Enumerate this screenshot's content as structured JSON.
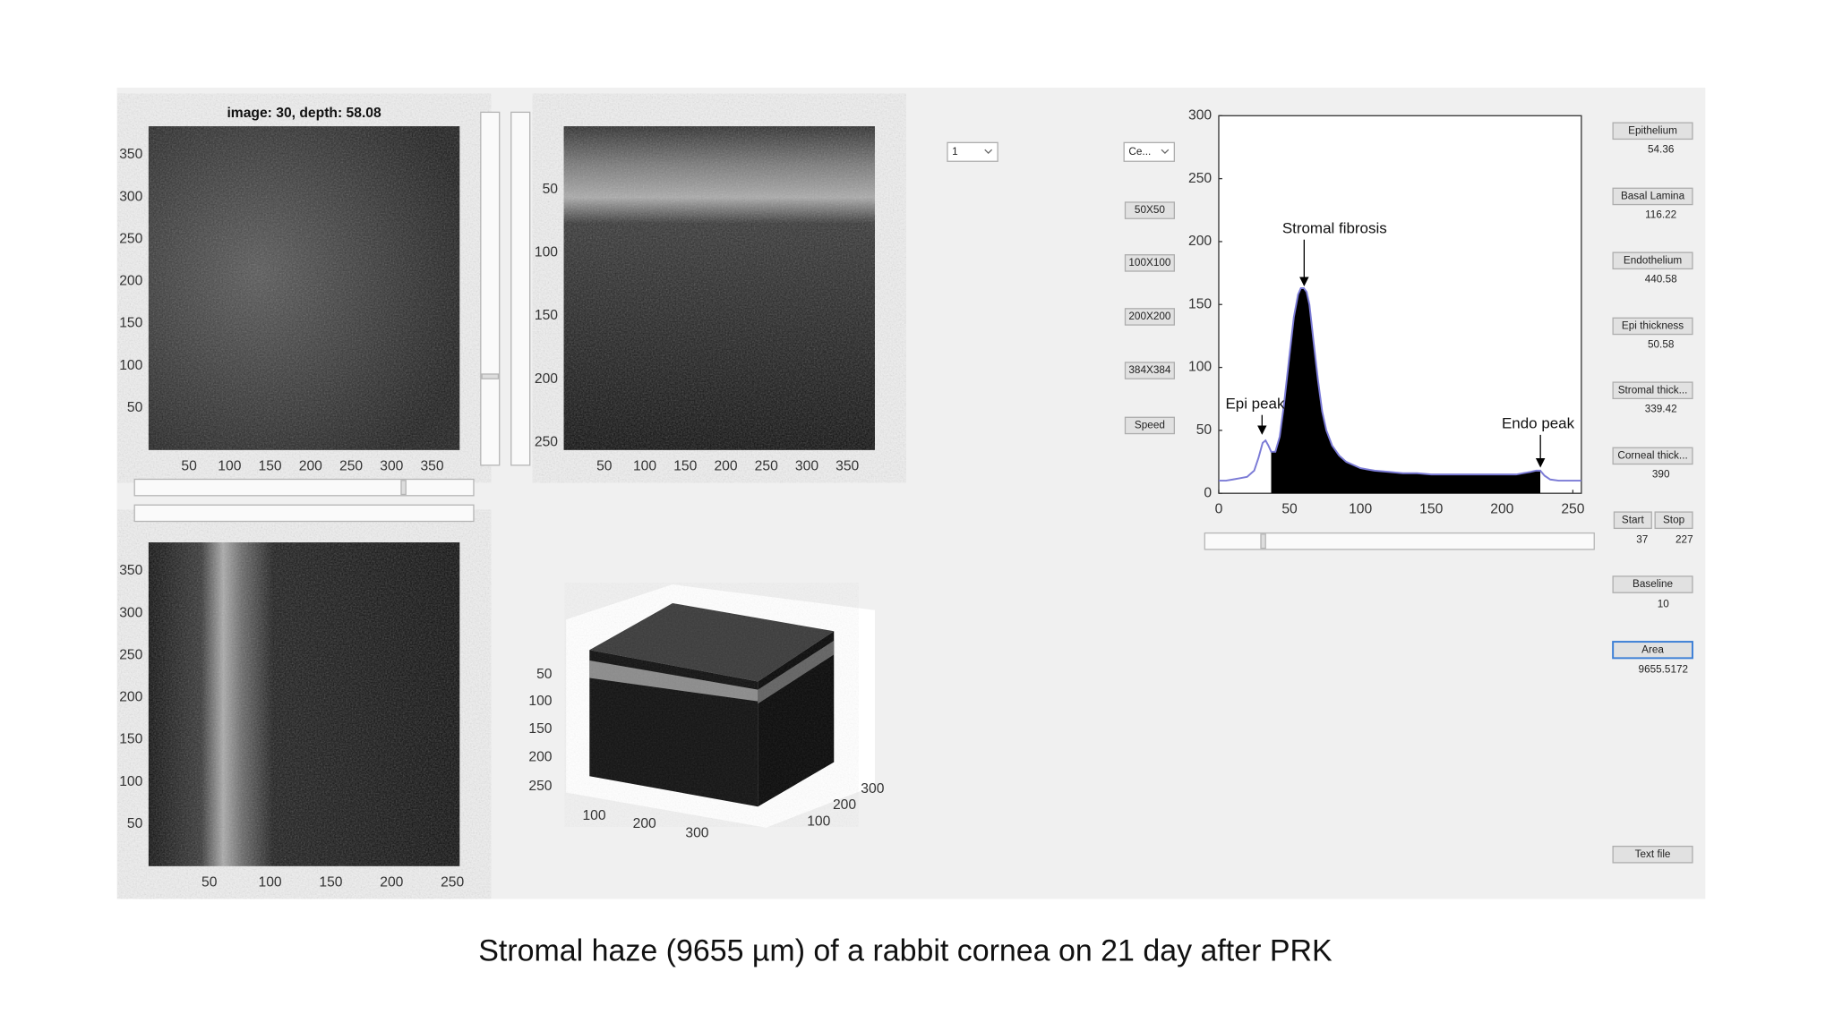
{
  "images": [
    {
      "title": "image: 30, depth: 58.08",
      "xlim": [
        0,
        384
      ],
      "ylim": [
        0,
        384
      ],
      "xticks": [
        50,
        100,
        150,
        200,
        250,
        300,
        350
      ],
      "yticks": [
        50,
        100,
        150,
        200,
        250,
        300,
        350
      ]
    },
    {
      "xlim": [
        0,
        384
      ],
      "ylim": [
        0,
        256
      ],
      "xticks": [
        50,
        100,
        150,
        200,
        250,
        300,
        350
      ],
      "yticks": [
        50,
        100,
        150,
        200,
        250
      ]
    },
    {
      "xlim": [
        0,
        256
      ],
      "ylim": [
        0,
        384
      ],
      "xticks": [
        50,
        100,
        150,
        200,
        250
      ],
      "yticks": [
        50,
        100,
        150,
        200,
        250,
        300,
        350
      ]
    }
  ],
  "cube": {
    "zticks": [
      50,
      100,
      150,
      200,
      250
    ],
    "xticks": [
      100,
      200,
      300
    ],
    "yticks": [
      100,
      200,
      300
    ]
  },
  "dropdowns": [
    "1",
    "Ce..."
  ],
  "buttons": [
    "50X50",
    "100X100",
    "200X200",
    "384X384",
    "Speed"
  ],
  "measures": [
    {
      "label": "Epithelium",
      "value": 54.36
    },
    {
      "label": "Basal Lamina",
      "value": 116.22
    },
    {
      "label": "Endothelium",
      "value": 440.58
    },
    {
      "label": "Epi thickness",
      "value": 50.58
    },
    {
      "label": "Stromal thick...",
      "value": 339.42
    },
    {
      "label": "Corneal thick...",
      "value": 390
    }
  ],
  "start": {
    "label": "Start",
    "value": 37
  },
  "stop": {
    "label": "Stop",
    "value": 227
  },
  "baseline": {
    "label": "Baseline",
    "value": 10
  },
  "area": {
    "label": "Area",
    "value": 9655.5172
  },
  "text_file": "Text file",
  "chart_data": {
    "type": "line",
    "x": [
      0,
      5,
      10,
      15,
      20,
      25,
      28,
      31,
      33,
      35,
      37,
      40,
      43,
      46,
      50,
      53,
      56,
      58,
      60,
      62,
      64,
      67,
      70,
      73,
      76,
      80,
      85,
      90,
      100,
      110,
      120,
      130,
      140,
      150,
      160,
      170,
      180,
      190,
      200,
      210,
      215,
      220,
      224,
      227,
      230,
      234,
      240,
      250,
      256
    ],
    "series": [
      {
        "color": "#7b7bd6",
        "values": [
          10,
          10,
          11,
          12,
          13,
          18,
          28,
          40,
          42,
          38,
          33,
          33,
          45,
          70,
          110,
          140,
          158,
          163,
          163,
          160,
          150,
          120,
          90,
          65,
          50,
          38,
          30,
          25,
          20,
          18,
          17,
          16,
          16,
          15,
          15,
          15,
          15,
          15,
          15,
          15,
          16,
          17,
          18,
          18,
          14,
          11,
          10,
          10,
          10
        ]
      }
    ],
    "fill_color": "#000000",
    "xlim": [
      0,
      256
    ],
    "ylim": [
      0,
      300
    ],
    "xticks": [
      0,
      50,
      100,
      150,
      200,
      250
    ],
    "yticks": [
      0,
      50,
      100,
      150,
      200,
      250,
      300
    ],
    "annotations": [
      "Stromal fibrosis",
      "Epi peak",
      "Endo peak"
    ]
  },
  "caption": "Stromal haze (9655 µm) of a rabbit cornea on 21 day after PRK"
}
